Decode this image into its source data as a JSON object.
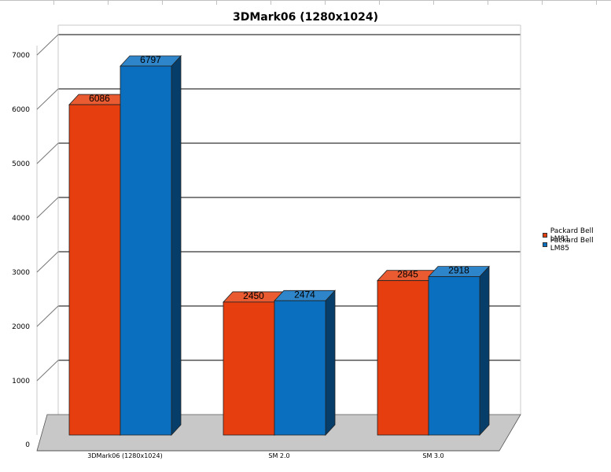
{
  "chart_data": {
    "type": "bar",
    "title": "3DMark06 (1280x1024)",
    "categories": [
      "3DMark06 (1280x1024)",
      "SM 2.0",
      "SM 3.0"
    ],
    "series": [
      {
        "name": "Packard Bell LM81",
        "values": [
          6086,
          2450,
          2845
        ]
      },
      {
        "name": "Packard Bell LM85",
        "values": [
          6797,
          2474,
          2918
        ]
      }
    ],
    "ylim": [
      0,
      7000
    ],
    "yticks": [
      0,
      1000,
      2000,
      3000,
      4000,
      5000,
      6000,
      7000
    ],
    "grid": true,
    "legend_position": "right",
    "colors": {
      "series1": "#e63e0e",
      "series2": "#0a6fbf",
      "floor": "#c8c8c8"
    }
  }
}
